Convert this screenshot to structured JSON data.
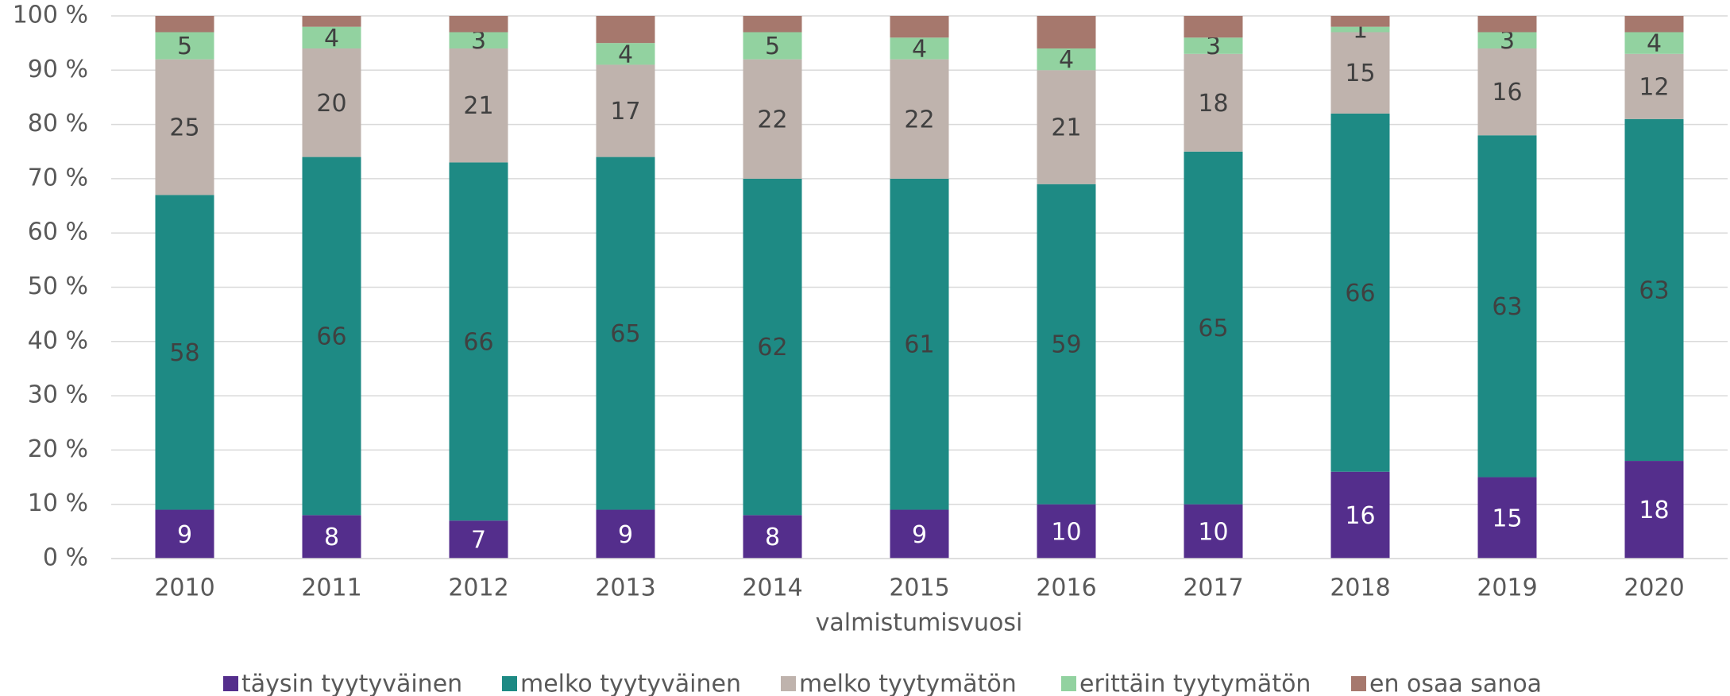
{
  "chart_data": {
    "type": "stacked_bar",
    "x_label": "valmistumisvuosi",
    "categories": [
      "2010",
      "2011",
      "2012",
      "2013",
      "2014",
      "2015",
      "2016",
      "2017",
      "2018",
      "2019",
      "2020"
    ],
    "series": [
      {
        "name": "täysin tyytyväinen",
        "color": "#542e8c",
        "label_color": "#ffffff",
        "show_labels": true,
        "values": [
          9,
          8,
          7,
          9,
          8,
          9,
          10,
          10,
          16,
          15,
          18
        ]
      },
      {
        "name": "melko tyytyväinen",
        "color": "#1e8a84",
        "label_color": "#404040",
        "show_labels": true,
        "values": [
          58,
          66,
          66,
          65,
          62,
          61,
          59,
          65,
          66,
          63,
          63
        ]
      },
      {
        "name": "melko tyytymätön",
        "color": "#bfb3ad",
        "label_color": "#404040",
        "show_labels": true,
        "values": [
          25,
          20,
          21,
          17,
          22,
          22,
          21,
          18,
          15,
          16,
          12
        ]
      },
      {
        "name": "erittäin tyytymätön",
        "color": "#92d2a0",
        "label_color": "#404040",
        "show_labels": true,
        "values": [
          5,
          4,
          3,
          4,
          5,
          4,
          4,
          3,
          1,
          3,
          4
        ]
      },
      {
        "name": "en osaa sanoa",
        "color": "#a6786d",
        "label_color": "#404040",
        "show_labels": false,
        "values": [
          3,
          2,
          3,
          5,
          3,
          4,
          6,
          4,
          2,
          3,
          3
        ]
      }
    ],
    "ylim": [
      0,
      100
    ],
    "yticks": [
      {
        "value": 0,
        "label": "0 %"
      },
      {
        "value": 10,
        "label": "10 %"
      },
      {
        "value": 20,
        "label": "20 %"
      },
      {
        "value": 30,
        "label": "30 %"
      },
      {
        "value": 40,
        "label": "40 %"
      },
      {
        "value": 50,
        "label": "50 %"
      },
      {
        "value": 60,
        "label": "60 %"
      },
      {
        "value": 70,
        "label": "70 %"
      },
      {
        "value": 80,
        "label": "80 %"
      },
      {
        "value": 90,
        "label": "90 %"
      },
      {
        "value": 100,
        "label": "100 %"
      }
    ],
    "grid": true,
    "legend": "bottom"
  }
}
